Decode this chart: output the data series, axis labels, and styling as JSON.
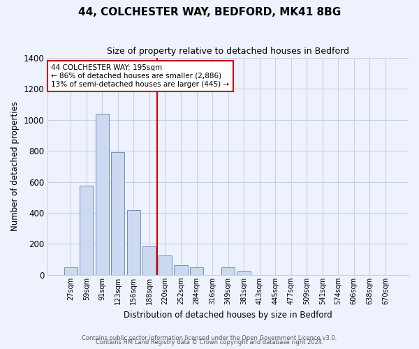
{
  "title": "44, COLCHESTER WAY, BEDFORD, MK41 8BG",
  "subtitle": "Size of property relative to detached houses in Bedford",
  "xlabel": "Distribution of detached houses by size in Bedford",
  "ylabel": "Number of detached properties",
  "bar_labels": [
    "27sqm",
    "59sqm",
    "91sqm",
    "123sqm",
    "156sqm",
    "188sqm",
    "220sqm",
    "252sqm",
    "284sqm",
    "316sqm",
    "349sqm",
    "381sqm",
    "413sqm",
    "445sqm",
    "477sqm",
    "509sqm",
    "541sqm",
    "574sqm",
    "606sqm",
    "638sqm",
    "670sqm"
  ],
  "bar_values": [
    50,
    575,
    1040,
    790,
    420,
    185,
    125,
    62,
    50,
    0,
    48,
    26,
    0,
    0,
    0,
    0,
    0,
    0,
    0,
    0,
    0
  ],
  "bar_color": "#ccd9f0",
  "bar_edge_color": "#7090c0",
  "vline_color": "#cc0000",
  "vline_xindex": 5,
  "ylim": [
    0,
    1400
  ],
  "yticks": [
    0,
    200,
    400,
    600,
    800,
    1000,
    1200,
    1400
  ],
  "annotation_title": "44 COLCHESTER WAY: 195sqm",
  "annotation_line1": "← 86% of detached houses are smaller (2,886)",
  "annotation_line2": "13% of semi-detached houses are larger (445) →",
  "annotation_box_color": "#ffffff",
  "annotation_box_edge": "#cc0000",
  "background_color": "#eef2fc",
  "grid_color": "#c8d0e8",
  "title_fontsize": 11,
  "subtitle_fontsize": 9,
  "footer1": "Contains HM Land Registry data © Crown copyright and database right 2024.",
  "footer2": "Contains public sector information licensed under the Open Government Licence v3.0."
}
